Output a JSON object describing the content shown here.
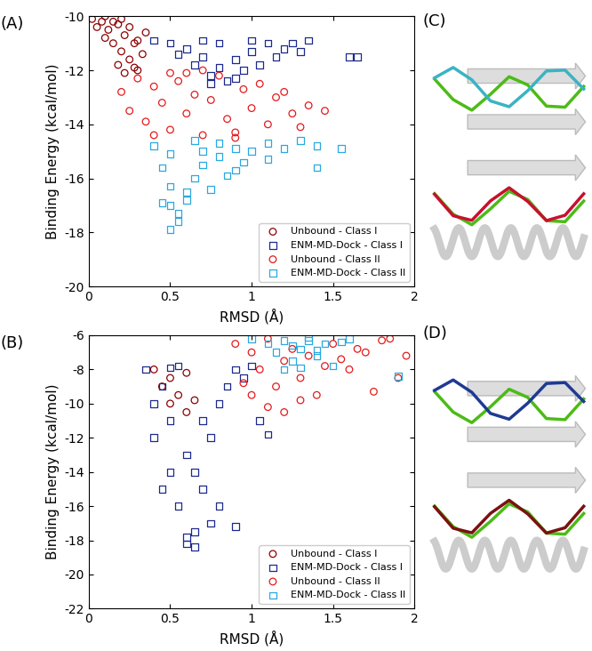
{
  "chart_data": [
    {
      "type": "scatter",
      "title": "(A)",
      "x_label": "RMSD (Å)",
      "y_label": "Binding Energy (kcal/mol)",
      "xlim": [
        0,
        2
      ],
      "ylim": [
        -20,
        -10
      ],
      "xticks": [
        0,
        0.5,
        1,
        1.5,
        2
      ],
      "yticks": [
        -20,
        -18,
        -16,
        -14,
        -12,
        -10
      ],
      "legend": "lower right",
      "series": [
        {
          "name": "Unbound - Class I",
          "color": "#8b0000",
          "marker": "circle",
          "x": [
            0.02,
            0.05,
            0.08,
            0.1,
            0.12,
            0.15,
            0.18,
            0.2,
            0.22,
            0.25,
            0.28,
            0.3,
            0.33,
            0.35,
            0.1,
            0.15,
            0.2,
            0.25,
            0.3,
            0.18,
            0.22,
            0.28
          ],
          "values": [
            -10.1,
            -10.4,
            -10.2,
            -10.8,
            -10.5,
            -11.0,
            -10.3,
            -11.3,
            -10.7,
            -11.6,
            -11.0,
            -12.0,
            -11.4,
            -10.6,
            -10.0,
            -10.2,
            -10.1,
            -10.4,
            -10.9,
            -11.8,
            -12.1,
            -11.9
          ]
        },
        {
          "name": "ENM-MD-Dock - Class I",
          "color": "#1c2a8c",
          "marker": "square",
          "x": [
            0.4,
            0.5,
            0.55,
            0.6,
            0.65,
            0.7,
            0.75,
            0.8,
            0.85,
            0.9,
            0.95,
            1.0,
            1.05,
            1.1,
            1.15,
            1.2,
            1.25,
            1.3,
            1.35,
            0.7,
            0.8,
            0.9,
            0.75,
            1.0,
            1.6,
            1.65
          ],
          "values": [
            -10.9,
            -11.0,
            -11.4,
            -11.2,
            -11.8,
            -11.5,
            -12.2,
            -11.0,
            -12.4,
            -11.6,
            -12.0,
            -11.3,
            -11.8,
            -11.0,
            -11.5,
            -11.2,
            -11.0,
            -11.3,
            -10.9,
            -10.9,
            -11.9,
            -12.3,
            -12.5,
            -10.9,
            -11.5,
            -11.5
          ]
        },
        {
          "name": "Unbound - Class II",
          "color": "#e41a1c",
          "marker": "circle",
          "x": [
            0.2,
            0.25,
            0.3,
            0.35,
            0.4,
            0.45,
            0.5,
            0.55,
            0.6,
            0.65,
            0.7,
            0.75,
            0.8,
            0.85,
            0.9,
            0.95,
            1.0,
            1.05,
            1.1,
            1.15,
            1.2,
            1.25,
            1.3,
            1.35,
            1.45,
            0.5,
            0.7,
            0.9,
            0.4,
            0.6
          ],
          "values": [
            -12.8,
            -13.5,
            -12.3,
            -13.9,
            -12.6,
            -13.2,
            -14.2,
            -12.4,
            -13.6,
            -12.9,
            -14.4,
            -13.1,
            -12.2,
            -13.8,
            -14.3,
            -12.7,
            -13.4,
            -12.5,
            -14.0,
            -13.0,
            -12.8,
            -13.6,
            -14.1,
            -13.3,
            -13.5,
            -12.1,
            -12.0,
            -14.5,
            -14.4,
            -12.1
          ]
        },
        {
          "name": "ENM-MD-Dock - Class II",
          "color": "#29a9e0",
          "marker": "square",
          "x": [
            0.4,
            0.45,
            0.5,
            0.5,
            0.55,
            0.6,
            0.65,
            0.7,
            0.75,
            0.8,
            0.85,
            0.9,
            0.95,
            1.0,
            1.1,
            1.2,
            1.3,
            1.4,
            0.5,
            0.55,
            0.6,
            0.45,
            0.7,
            0.65,
            0.9,
            1.55,
            1.4,
            0.5,
            0.8,
            1.1
          ],
          "values": [
            -14.8,
            -15.6,
            -16.3,
            -17.9,
            -17.3,
            -16.8,
            -16.0,
            -15.5,
            -16.4,
            -15.2,
            -15.9,
            -14.9,
            -15.4,
            -15.0,
            -14.7,
            -14.9,
            -14.6,
            -14.8,
            -17.0,
            -17.6,
            -16.5,
            -16.9,
            -15.0,
            -14.6,
            -15.7,
            -14.9,
            -15.6,
            -15.1,
            -14.7,
            -15.3
          ]
        }
      ]
    },
    {
      "type": "scatter",
      "title": "(B)",
      "x_label": "RMSD (Å)",
      "y_label": "Binding Energy (kcal/mol)",
      "xlim": [
        0,
        2
      ],
      "ylim": [
        -22,
        -6
      ],
      "xticks": [
        0,
        0.5,
        1,
        1.5,
        2
      ],
      "yticks": [
        -22,
        -20,
        -18,
        -16,
        -14,
        -12,
        -10,
        -8,
        -6
      ],
      "legend": "lower right",
      "series": [
        {
          "name": "Unbound - Class I",
          "color": "#8b0000",
          "marker": "circle",
          "x": [
            0.4,
            0.45,
            0.5,
            0.55,
            0.6,
            0.65,
            0.5,
            0.6
          ],
          "values": [
            -8,
            -9,
            -8.5,
            -9.5,
            -8.2,
            -9.8,
            -10,
            -10.5
          ]
        },
        {
          "name": "ENM-MD-Dock - Class I",
          "color": "#1c2a8c",
          "marker": "square",
          "x": [
            0.35,
            0.4,
            0.4,
            0.45,
            0.5,
            0.5,
            0.55,
            0.6,
            0.6,
            0.65,
            0.7,
            0.75,
            0.8,
            0.85,
            0.9,
            0.95,
            1.0,
            0.55,
            0.6,
            0.65,
            0.7,
            0.45,
            0.5,
            0.65,
            0.9,
            1.05,
            1.1,
            0.8,
            0.75
          ],
          "values": [
            -8,
            -10,
            -12,
            -9,
            -14,
            -11,
            -16,
            -18.2,
            -13,
            -17.5,
            -15,
            -12,
            -10,
            -9,
            -8,
            -8.5,
            -7.8,
            -7.8,
            -17.8,
            -14,
            -11,
            -15,
            -7.9,
            -18.4,
            -17.2,
            -11,
            -11.8,
            -16,
            -17
          ]
        },
        {
          "name": "Unbound - Class II",
          "color": "#e41a1c",
          "marker": "circle",
          "x": [
            0.9,
            1.0,
            1.05,
            1.1,
            1.15,
            1.2,
            1.25,
            1.3,
            1.35,
            1.4,
            1.5,
            1.6,
            1.7,
            1.8,
            1.9,
            1.95,
            1.1,
            1.2,
            1.0,
            1.3,
            1.45,
            1.65,
            1.85,
            1.75,
            1.55,
            0.95
          ],
          "values": [
            -6.5,
            -7,
            -8,
            -6.2,
            -9,
            -7.5,
            -6.8,
            -8.5,
            -7.2,
            -9.5,
            -6.5,
            -8,
            -7,
            -6.3,
            -8.5,
            -7.2,
            -10.2,
            -10.5,
            -9.5,
            -9.8,
            -7.8,
            -6.8,
            -6.2,
            -9.3,
            -7.4,
            -8.8
          ]
        },
        {
          "name": "ENM-MD-Dock - Class II",
          "color": "#29a9e0",
          "marker": "square",
          "x": [
            1.0,
            1.1,
            1.15,
            1.2,
            1.25,
            1.3,
            1.35,
            1.4,
            1.45,
            1.5,
            1.55,
            1.6,
            1.2,
            1.3,
            1.4,
            1.35,
            1.25,
            1.9
          ],
          "values": [
            -6.2,
            -6.5,
            -7,
            -6.3,
            -7.5,
            -6.8,
            -6.1,
            -7.2,
            -6.5,
            -7.8,
            -6.4,
            -6.2,
            -8,
            -7.9,
            -6.9,
            -6.3,
            -6.6,
            -8.4
          ]
        }
      ]
    }
  ],
  "panels": [
    {
      "label": "(C)"
    },
    {
      "label": "(D)"
    }
  ]
}
